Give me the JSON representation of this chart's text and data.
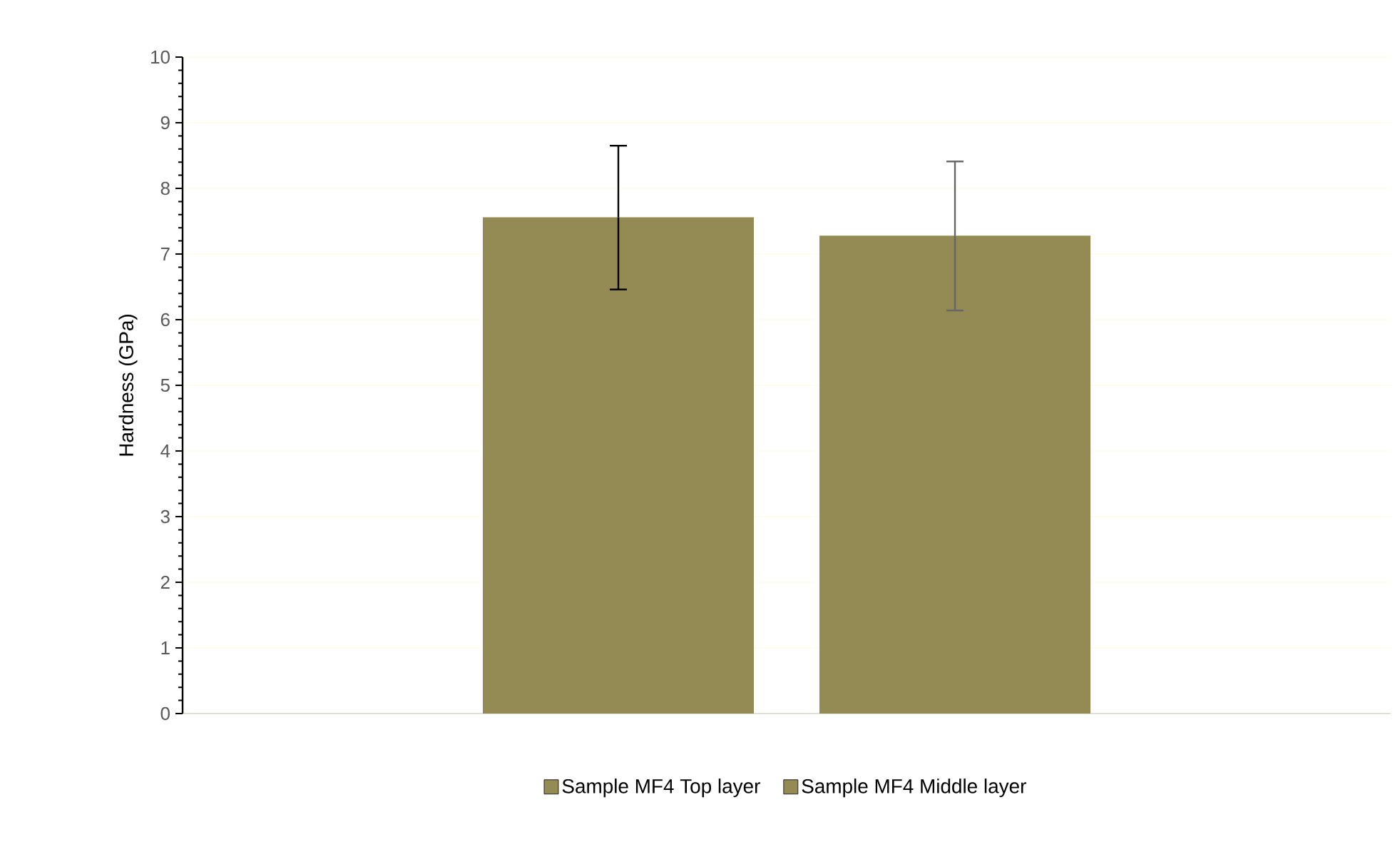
{
  "chart_data": {
    "type": "bar",
    "ylabel": "Hardness (GPa)",
    "categories": [
      null
    ],
    "series": [
      {
        "name": "Sample MF4 Top layer",
        "color": "#948a54",
        "values": [
          7.56
        ],
        "errors": [
          [
            6.46,
            8.65
          ]
        ]
      },
      {
        "name": "Sample MF4 Middle layer",
        "color": "#948a54",
        "values": [
          7.28
        ],
        "errors": [
          [
            6.14,
            8.41
          ]
        ]
      }
    ],
    "ylim": [
      0,
      10
    ],
    "yticks": [
      0,
      1,
      2,
      3,
      4,
      5,
      6,
      7,
      8,
      9,
      10
    ],
    "grid": "y",
    "legend": "bottom"
  }
}
